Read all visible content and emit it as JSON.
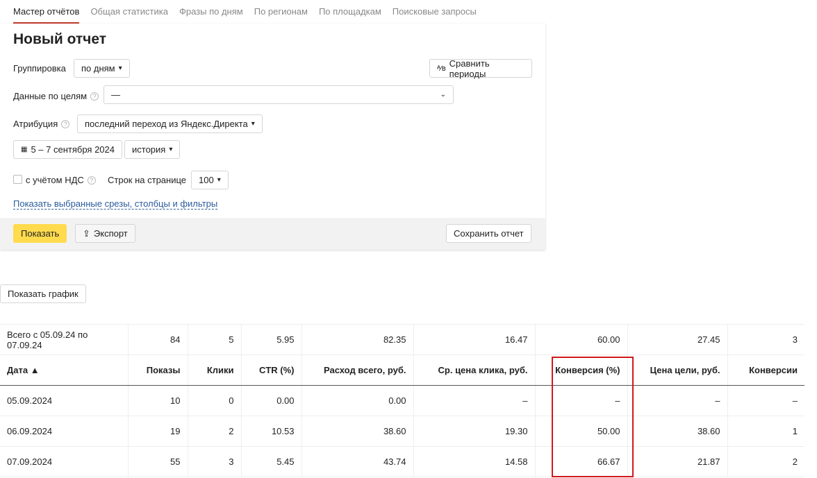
{
  "tabs": [
    "Мастер отчётов",
    "Общая статистика",
    "Фразы по дням",
    "По регионам",
    "По площадкам",
    "Поисковые запросы"
  ],
  "title": "Новый отчет",
  "grouping": {
    "label": "Группировка",
    "value": "по дням"
  },
  "compare": "Сравнить периоды",
  "goals": {
    "label": "Данные по целям",
    "value": "—"
  },
  "attribution": {
    "label": "Атрибуция",
    "value": "последний переход из Яндекс.Директа"
  },
  "date_range": "5 – 7 сентября 2024",
  "history": "история",
  "vat": {
    "label": "с учётом НДС",
    "checked": false
  },
  "rows_per_page": {
    "label": "Строк на странице",
    "value": "100"
  },
  "show_slices": "Показать выбранные срезы, столбцы и фильтры",
  "show": "Показать",
  "export": "Экспорт",
  "save": "Сохранить отчет",
  "show_chart": "Показать график",
  "highlight_color": "#d0191b",
  "table": {
    "summary": [
      "Всего с 05.09.24 по 07.09.24",
      "84",
      "5",
      "5.95",
      "82.35",
      "16.47",
      "60.00",
      "27.45",
      "3"
    ],
    "headers": [
      "Дата ▲",
      "Показы",
      "Клики",
      "CTR (%)",
      "Расход всего, руб.",
      "Ср. цена клика, руб.",
      "Конверсия (%)",
      "Цена цели, руб.",
      "Конверсии"
    ],
    "rows": [
      [
        "05.09.2024",
        "10",
        "0",
        "0.00",
        "0.00",
        "–",
        "–",
        "–",
        "–"
      ],
      [
        "06.09.2024",
        "19",
        "2",
        "10.53",
        "38.60",
        "19.30",
        "50.00",
        "38.60",
        "1"
      ],
      [
        "07.09.2024",
        "55",
        "3",
        "5.45",
        "43.74",
        "14.58",
        "66.67",
        "21.87",
        "2"
      ]
    ]
  }
}
